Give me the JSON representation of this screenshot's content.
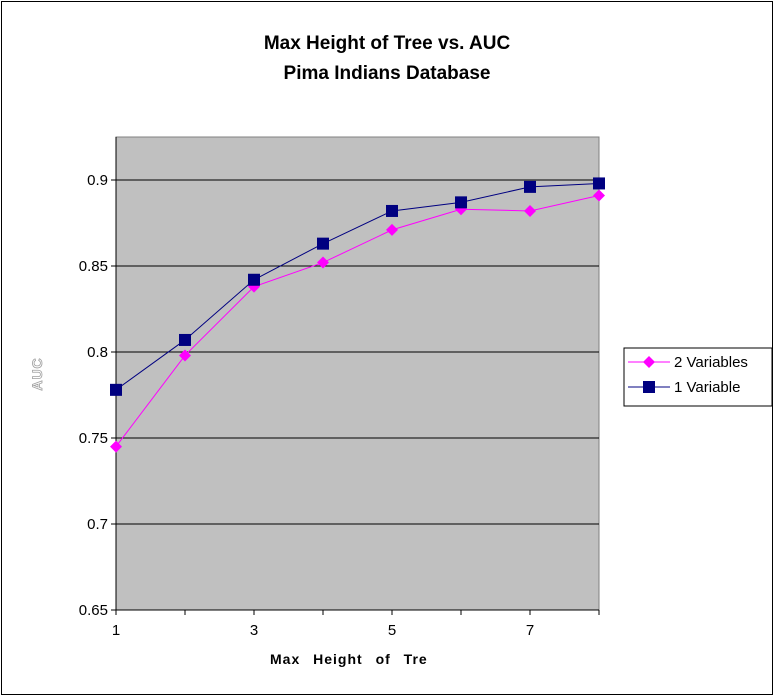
{
  "chart_data": {
    "type": "line",
    "title": [
      "Max Height of Tree vs. AUC",
      "Pima Indians Database"
    ],
    "xlabel": "Max Height of Tre",
    "ylabel": "AUC",
    "x": [
      1,
      2,
      3,
      4,
      5,
      6,
      7,
      8
    ],
    "xlim": [
      1,
      8
    ],
    "xticks": [
      "1",
      "3",
      "5",
      "7"
    ],
    "xtick_values": [
      1,
      3,
      5,
      7
    ],
    "ylim": [
      0.65,
      0.925
    ],
    "yticks": [
      "0.65",
      "0.7",
      "0.75",
      "0.8",
      "0.85",
      "0.9"
    ],
    "ytick_values": [
      0.65,
      0.7,
      0.75,
      0.8,
      0.85,
      0.9
    ],
    "grid": "horizontal",
    "plot_background": "#c0c0c0",
    "legend_position": "right",
    "series": [
      {
        "name": "2 Variables",
        "color": "#ff00ff",
        "marker": "diamond",
        "values": [
          0.745,
          0.798,
          0.838,
          0.852,
          0.871,
          0.883,
          0.882,
          0.891
        ]
      },
      {
        "name": "1 Variable",
        "color": "#000080",
        "marker": "square",
        "values": [
          0.778,
          0.807,
          0.842,
          0.863,
          0.882,
          0.887,
          0.896,
          0.898
        ]
      }
    ]
  }
}
